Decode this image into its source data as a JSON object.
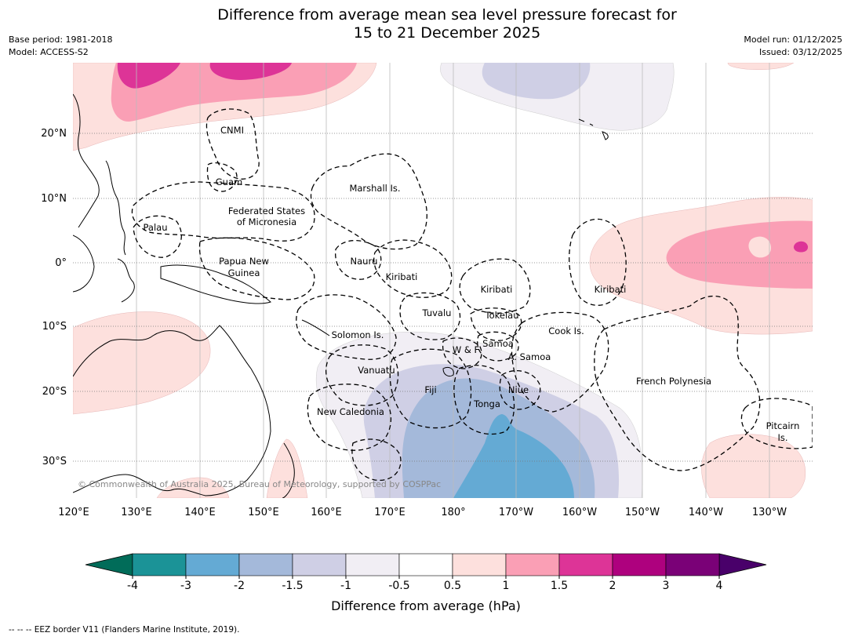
{
  "title_line1": "Difference from average mean sea level pressure forecast for",
  "title_line2": "15 to 21 December 2025",
  "meta": {
    "base_period": "Base period: 1981-2018",
    "model": "Model: ACCESS-S2",
    "model_run": "Model run: 01/12/2025",
    "issued": "Issued: 03/12/2025"
  },
  "lat_labels": [
    "20°N",
    "10°N",
    "0°",
    "10°S",
    "20°S",
    "30°S"
  ],
  "lon_labels": [
    "120°E",
    "130°E",
    "140°E",
    "150°E",
    "160°E",
    "170°E",
    "180°",
    "170°W",
    "160°W",
    "150°W",
    "140°W",
    "130°W"
  ],
  "places": {
    "cnmi": "CNMI",
    "guam": "Guam",
    "marshall": "Marshall Is.",
    "fsm1": "Federated States",
    "fsm2": "of Micronesia",
    "palau": "Palau",
    "png1": "Papua New",
    "png2": "Guinea",
    "nauru": "Nauru",
    "kiribati_w": "Kiribati",
    "kiribati_c": "Kiribati",
    "kiribati_e": "Kiribati",
    "tuvalu": "Tuvalu",
    "tokelau": "Tokelau",
    "cook": "Cook Is.",
    "solomon": "Solomon Is.",
    "wf": "W & F",
    "samoa": "Samoa",
    "asamoa": "A. Samoa",
    "vanuatu": "Vanuatu",
    "fiji": "Fiji",
    "niue": "Niue",
    "tonga": "Tonga",
    "newcal": "New Caledonia",
    "frpoly": "French Polynesia",
    "pitcairn1": "Pitcairn",
    "pitcairn2": "Is."
  },
  "credit": "© Commonwealth of Australia 2025, Bureau of Meteorology, supported by COSPPac",
  "colorbar": {
    "ticks": [
      "-4",
      "-3",
      "-2",
      "-1.5",
      "-1",
      "-0.5",
      "0.5",
      "1",
      "1.5",
      "2",
      "3",
      "4"
    ],
    "colors": [
      "#1b9397",
      "#64aad4",
      "#a4b9da",
      "#cfcfe5",
      "#f1eef4",
      "#ffffff",
      "#fde0dd",
      "#fa9fb5",
      "#dd3497",
      "#ae017e",
      "#7a0177"
    ],
    "under_color": "#016c59",
    "over_color": "#49006a",
    "label": "Difference from average (hPa)"
  },
  "footnote": "-- -- -- EEZ border V11 (Flanders Marine Institute, 2019)."
}
